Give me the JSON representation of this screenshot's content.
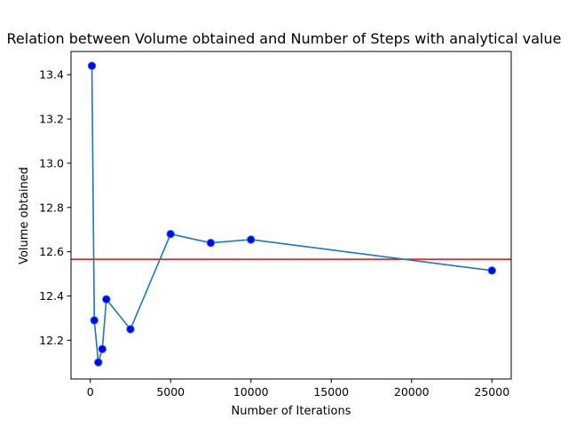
{
  "chart_data": {
    "type": "line",
    "title": "Relation between Volume obtained and Number of Steps with analytical value",
    "xlabel": "Number of Iterations",
    "ylabel": "Volume obtained",
    "xlim": [
      -1200,
      26200
    ],
    "ylim": [
      12.025,
      13.505
    ],
    "xticks": [
      0,
      5000,
      10000,
      15000,
      20000,
      25000
    ],
    "xtick_labels": [
      "0",
      "5000",
      "10000",
      "15000",
      "20000",
      "25000"
    ],
    "yticks": [
      12.2,
      12.4,
      12.6,
      12.8,
      13.0,
      13.2,
      13.4
    ],
    "ytick_labels": [
      "12.2",
      "12.4",
      "12.6",
      "12.8",
      "13.0",
      "13.2",
      "13.4"
    ],
    "grid": false,
    "series": [
      {
        "x": [
          100,
          250,
          500,
          750,
          1000,
          2500,
          5000,
          7500,
          10000,
          25000
        ],
        "y": [
          13.44,
          12.29,
          12.1,
          12.16,
          12.385,
          12.25,
          12.68,
          12.64,
          12.655,
          12.515
        ],
        "line_color": "#1f77b4",
        "marker_face": "#0000ff",
        "marker_edge": "#1f77b4"
      }
    ],
    "reference_line": {
      "y": 12.566,
      "color": "#ff0000"
    }
  }
}
